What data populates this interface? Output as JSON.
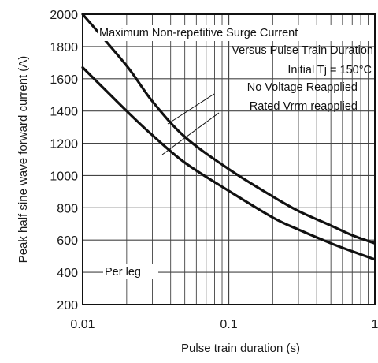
{
  "chart_data": {
    "type": "line",
    "title": "",
    "xlabel": "Pulse train duration (s)",
    "ylabel": "Peak half sine wave forward current (A)",
    "xscale": "log",
    "xlim": [
      0.01,
      1
    ],
    "ylim": [
      200,
      2000
    ],
    "grid": true,
    "x_ticks": [
      0.01,
      0.1,
      1
    ],
    "x_tick_labels": [
      "0.01",
      "0.1",
      "1"
    ],
    "y_ticks": [
      200,
      400,
      600,
      800,
      1000,
      1200,
      1400,
      1600,
      1800,
      2000
    ],
    "y_tick_labels": [
      "200",
      "400",
      "600",
      "800",
      "1000",
      "1200",
      "1400",
      "1600",
      "1800",
      "2000"
    ],
    "series": [
      {
        "name": "No Voltage Reapplied",
        "x": [
          0.01,
          0.02,
          0.03,
          0.05,
          0.1,
          0.2,
          0.3,
          0.5,
          0.7,
          1
        ],
        "y": [
          2000,
          1680,
          1460,
          1240,
          1040,
          870,
          780,
          690,
          630,
          580
        ]
      },
      {
        "name": "Rated Vrrm reapplied",
        "x": [
          0.01,
          0.02,
          0.03,
          0.05,
          0.1,
          0.2,
          0.3,
          0.5,
          0.7,
          1
        ],
        "y": [
          1670,
          1400,
          1250,
          1080,
          905,
          740,
          665,
          580,
          530,
          480
        ]
      }
    ],
    "annotations": {
      "title_line1": "Maximum Non-repetitive Surge Current",
      "title_line2": "Versus Pulse Train Duration",
      "condition": "Initial Tj = 150°C",
      "per_leg": "Per leg"
    },
    "style": {
      "line_color": "#111111",
      "grid_color": "#444444"
    }
  }
}
